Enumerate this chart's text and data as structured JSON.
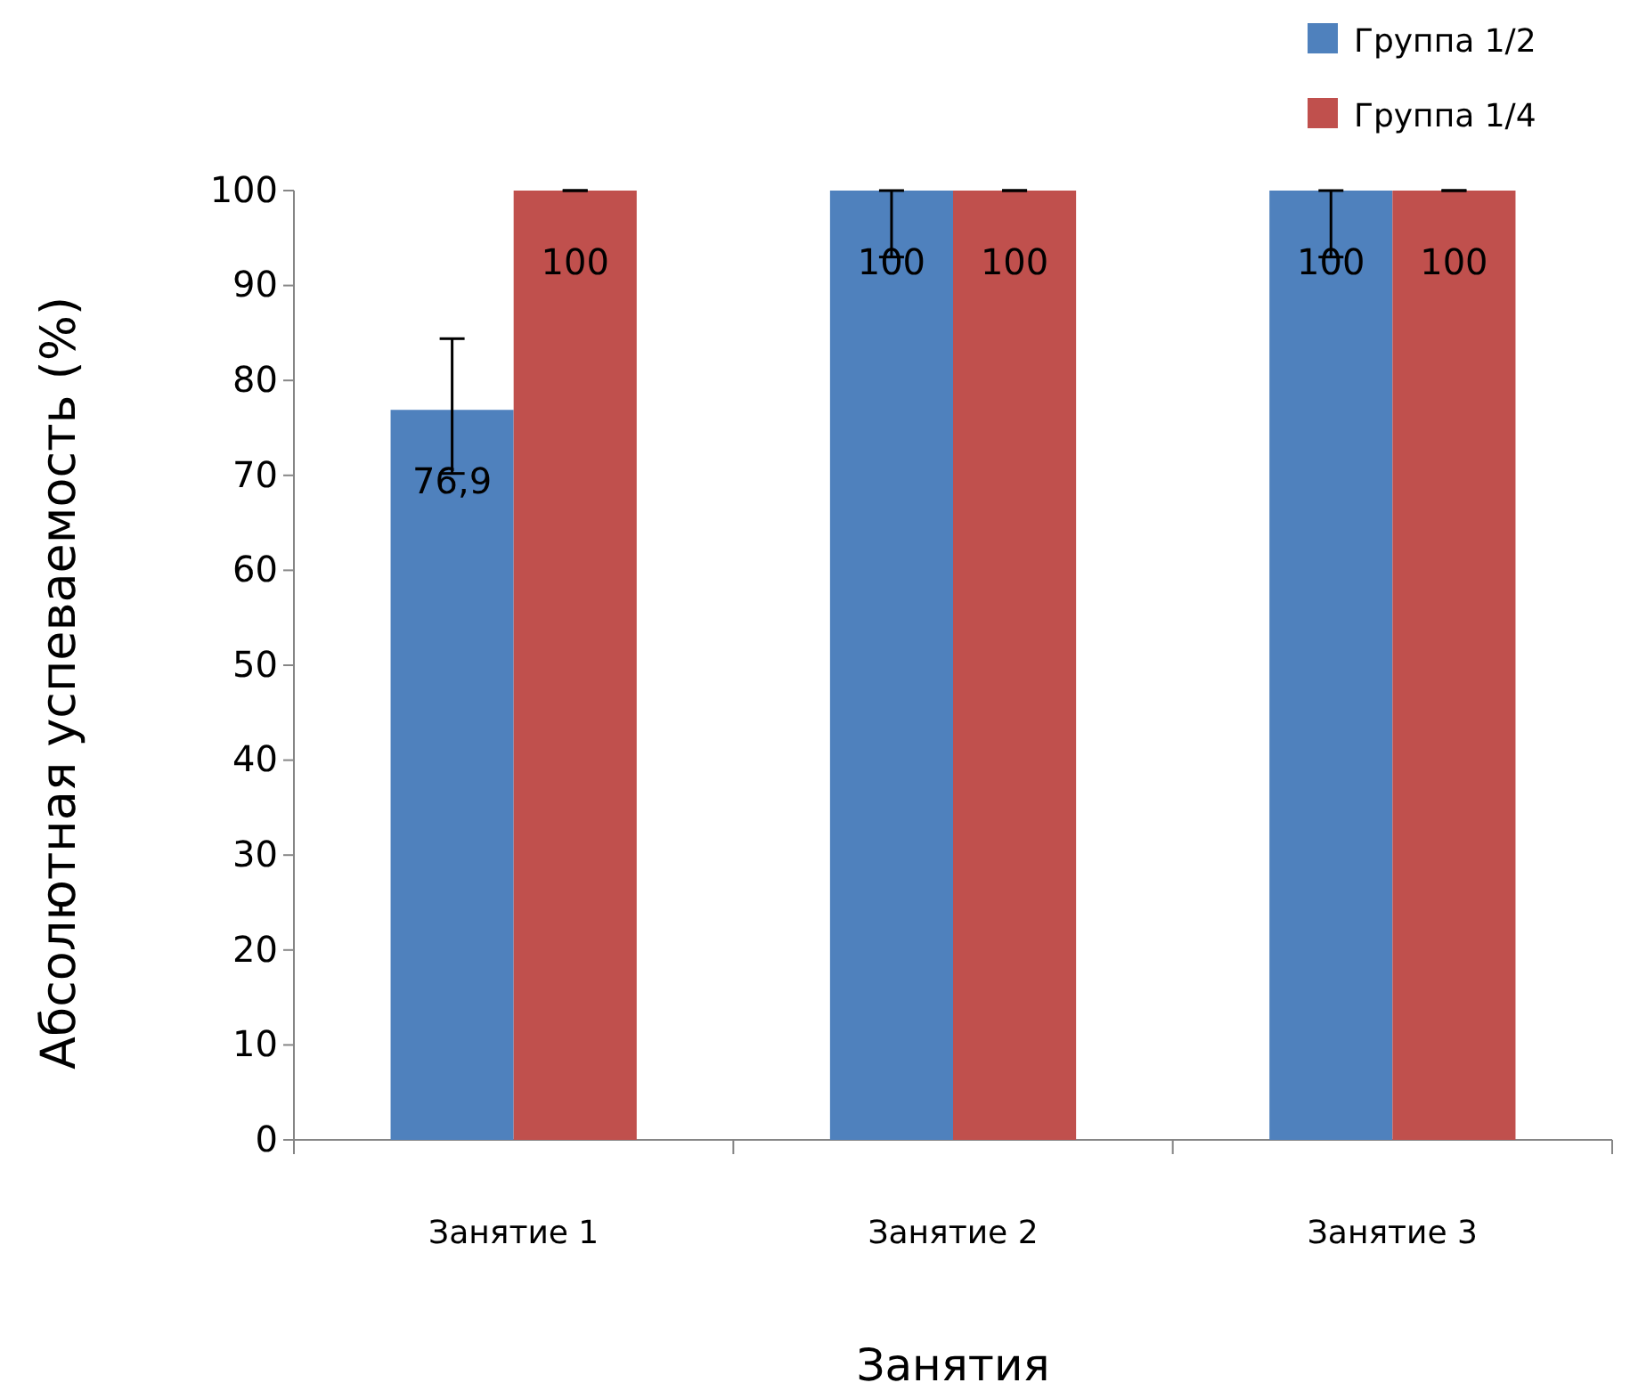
{
  "chart_data": {
    "type": "bar",
    "xlabel": "Занятия",
    "ylabel": "Абсолютная успеваемость (%)",
    "categories": [
      "Занятие 1",
      "Занятие 2",
      "Занятие 3"
    ],
    "series": [
      {
        "name": "Группа 1/2",
        "color": "#4f81bd",
        "values": [
          76.9,
          100,
          100
        ],
        "errors": [
          [
            70.2,
            84.4
          ],
          [
            93,
            100
          ],
          [
            93,
            100
          ]
        ],
        "value_labels": [
          "76,9",
          "100",
          "100"
        ]
      },
      {
        "name": "Группа 1/4",
        "color": "#c0504d",
        "values": [
          100,
          100,
          100
        ],
        "errors": [
          [
            100,
            100
          ],
          [
            100,
            100
          ],
          [
            100,
            100
          ]
        ],
        "value_labels": [
          "100",
          "100",
          "100"
        ]
      }
    ],
    "ylim": [
      0,
      100
    ],
    "yticks": [
      0,
      10,
      20,
      30,
      40,
      50,
      60,
      70,
      80,
      90,
      100
    ],
    "grid": false,
    "legend": "top right"
  }
}
